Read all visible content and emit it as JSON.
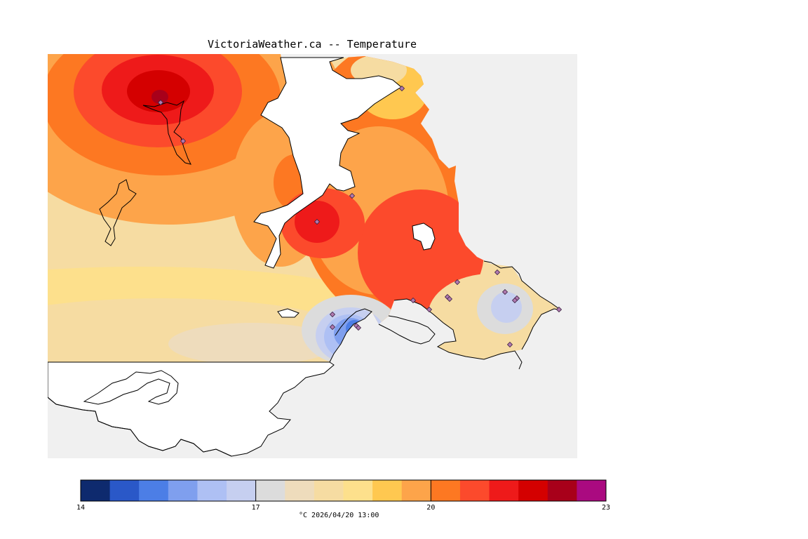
{
  "title": "VictoriaWeather.ca -- Temperature",
  "caption": "°C 2026/04/20 13:00",
  "colors": {
    "land_unmodelled": "#f0f0f0",
    "water": "#ffffff",
    "coastline": "#000000",
    "station_marker": "#b07ab0"
  },
  "legend": {
    "min": 14,
    "max": 23,
    "tick_labels": [
      "14",
      "17",
      "20",
      "23"
    ],
    "tick_values": [
      14,
      17,
      20,
      23
    ],
    "bins": [
      {
        "from": 14.0,
        "to": 14.5,
        "color": "#0e2a6e"
      },
      {
        "from": 14.5,
        "to": 15.0,
        "color": "#2a58c8"
      },
      {
        "from": 15.0,
        "to": 15.5,
        "color": "#4c7ee6"
      },
      {
        "from": 15.5,
        "to": 16.0,
        "color": "#7f9fee"
      },
      {
        "from": 16.0,
        "to": 16.5,
        "color": "#aec0f4"
      },
      {
        "from": 16.5,
        "to": 17.0,
        "color": "#c6cff0"
      },
      {
        "from": 17.0,
        "to": 17.5,
        "color": "#dcdcdc"
      },
      {
        "from": 17.5,
        "to": 18.0,
        "color": "#eedcbc"
      },
      {
        "from": 18.0,
        "to": 18.5,
        "color": "#f6dca2"
      },
      {
        "from": 18.5,
        "to": 19.0,
        "color": "#fde08c"
      },
      {
        "from": 19.0,
        "to": 19.5,
        "color": "#ffc850"
      },
      {
        "from": 19.5,
        "to": 20.0,
        "color": "#fda44a"
      },
      {
        "from": 20.0,
        "to": 20.5,
        "color": "#fd7822"
      },
      {
        "from": 20.5,
        "to": 21.0,
        "color": "#fc4a2c"
      },
      {
        "from": 21.0,
        "to": 21.5,
        "color": "#ee1a1a"
      },
      {
        "from": 21.5,
        "to": 22.0,
        "color": "#d40000"
      },
      {
        "from": 22.0,
        "to": 22.5,
        "color": "#a8001a"
      },
      {
        "from": 22.5,
        "to": 23.0,
        "color": "#aa0a80"
      }
    ]
  },
  "field": {
    "background_temp": 18.4,
    "hotspots": [
      {
        "name": "northwest-peak",
        "temp": 22.2
      },
      {
        "name": "inlet-peak",
        "temp": 21.4
      },
      {
        "name": "peninsula-warm",
        "temp": 20.9
      },
      {
        "name": "bay-warm",
        "temp": 20.4
      }
    ],
    "coldspots": [
      {
        "name": "harbour-cold",
        "temp": 15.2
      },
      {
        "name": "southeast-cool",
        "temp": 16.8
      }
    ]
  }
}
